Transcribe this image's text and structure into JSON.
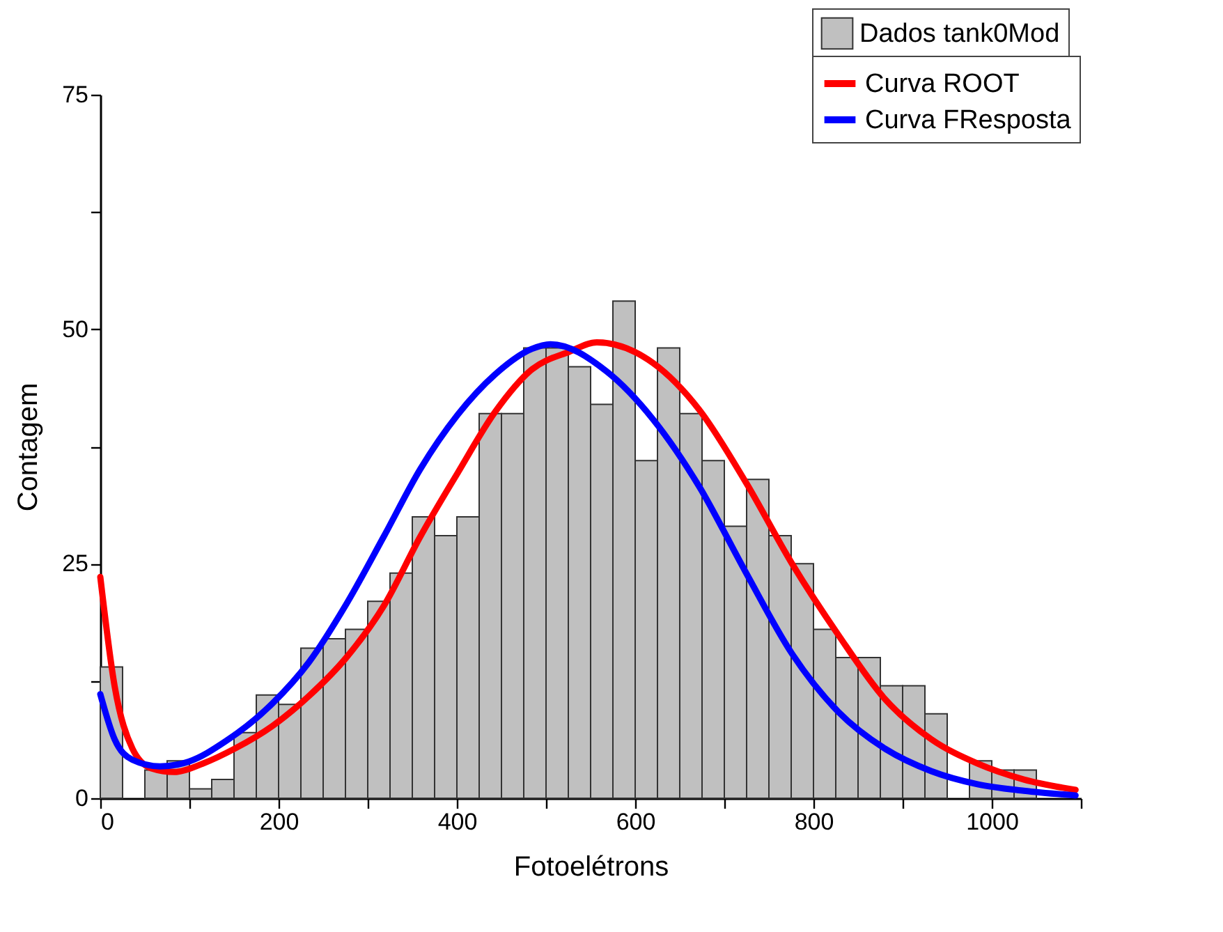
{
  "chart_data": {
    "type": "histogram",
    "xlabel": "Fotoelétrons",
    "ylabel": "Contagem",
    "xlim": [
      0,
      1100
    ],
    "ylim": [
      0,
      75
    ],
    "xticks": [
      0,
      {
        "value": 100,
        "label": null
      },
      200,
      {
        "value": 300,
        "label": null
      },
      400,
      {
        "value": 500,
        "label": null
      },
      600,
      {
        "value": 700,
        "label": null
      },
      800,
      {
        "value": 900,
        "label": null
      },
      1000,
      {
        "value": 1100,
        "label": null
      }
    ],
    "yticks": [
      0,
      {
        "value": 12.5,
        "label": null
      },
      25,
      {
        "value": 37.5,
        "label": null
      },
      50,
      {
        "value": 62.5,
        "label": null
      },
      75
    ],
    "grid": false,
    "legend": "top right",
    "line_style": "solid",
    "marker": "none",
    "series": [
      {
        "name": "Dados tank0Mod",
        "color": "#c0c0c0",
        "bins": [
          0,
          25,
          50,
          75,
          100,
          125,
          150,
          175,
          200,
          225,
          250,
          275,
          300,
          325,
          350,
          375,
          400,
          425,
          450,
          475,
          500,
          525,
          550,
          575,
          600,
          625,
          650,
          675,
          700,
          725,
          750,
          775,
          800,
          825,
          850,
          875,
          900,
          925,
          950,
          975,
          1000,
          1025,
          1050
        ],
        "values": [
          14,
          0,
          3,
          4,
          1,
          2,
          7,
          11,
          10,
          16,
          17,
          18,
          21,
          24,
          30,
          28,
          30,
          41,
          41,
          48,
          48,
          46,
          42,
          53,
          36,
          48,
          41,
          36,
          29,
          34,
          28,
          25,
          18,
          15,
          15,
          12,
          12,
          9,
          0,
          4,
          3,
          3
        ]
      },
      {
        "name": "Curva ROOT",
        "type": "line",
        "color": "#ff0000",
        "x": [
          0,
          16,
          36,
          57,
          83,
          115,
          151,
          193,
          234,
          276,
          318,
          359,
          401,
          443,
          484,
          526,
          557,
          620,
          672,
          724,
          776,
          828,
          880,
          932,
          984,
          1036,
          1094
        ],
        "values": [
          23.6,
          12,
          5.3,
          3.2,
          2.8,
          3.7,
          5.3,
          7.7,
          10.9,
          15,
          20.5,
          27.9,
          34.7,
          41.2,
          45.7,
          47.6,
          48.6,
          46.4,
          41.4,
          33.7,
          25,
          17.4,
          10.6,
          6.3,
          3.7,
          2,
          0.9
        ]
      },
      {
        "name": "Curva FResposta",
        "type": "line",
        "color": "#0000ff",
        "x": [
          0,
          16,
          36,
          67,
          99,
          141,
          193,
          234,
          276,
          318,
          359,
          401,
          443,
          484,
          505,
          568,
          620,
          672,
          724,
          776,
          828,
          880,
          932,
          984,
          1036,
          1094
        ],
        "values": [
          11.1,
          6.3,
          4.1,
          3.4,
          3.9,
          6.1,
          10.1,
          14.5,
          20.7,
          27.9,
          35.1,
          40.9,
          45.2,
          47.9,
          48.4,
          45.5,
          40.4,
          33.2,
          24.1,
          15.4,
          9.2,
          5.3,
          2.9,
          1.5,
          0.8,
          0.3
        ]
      }
    ]
  }
}
